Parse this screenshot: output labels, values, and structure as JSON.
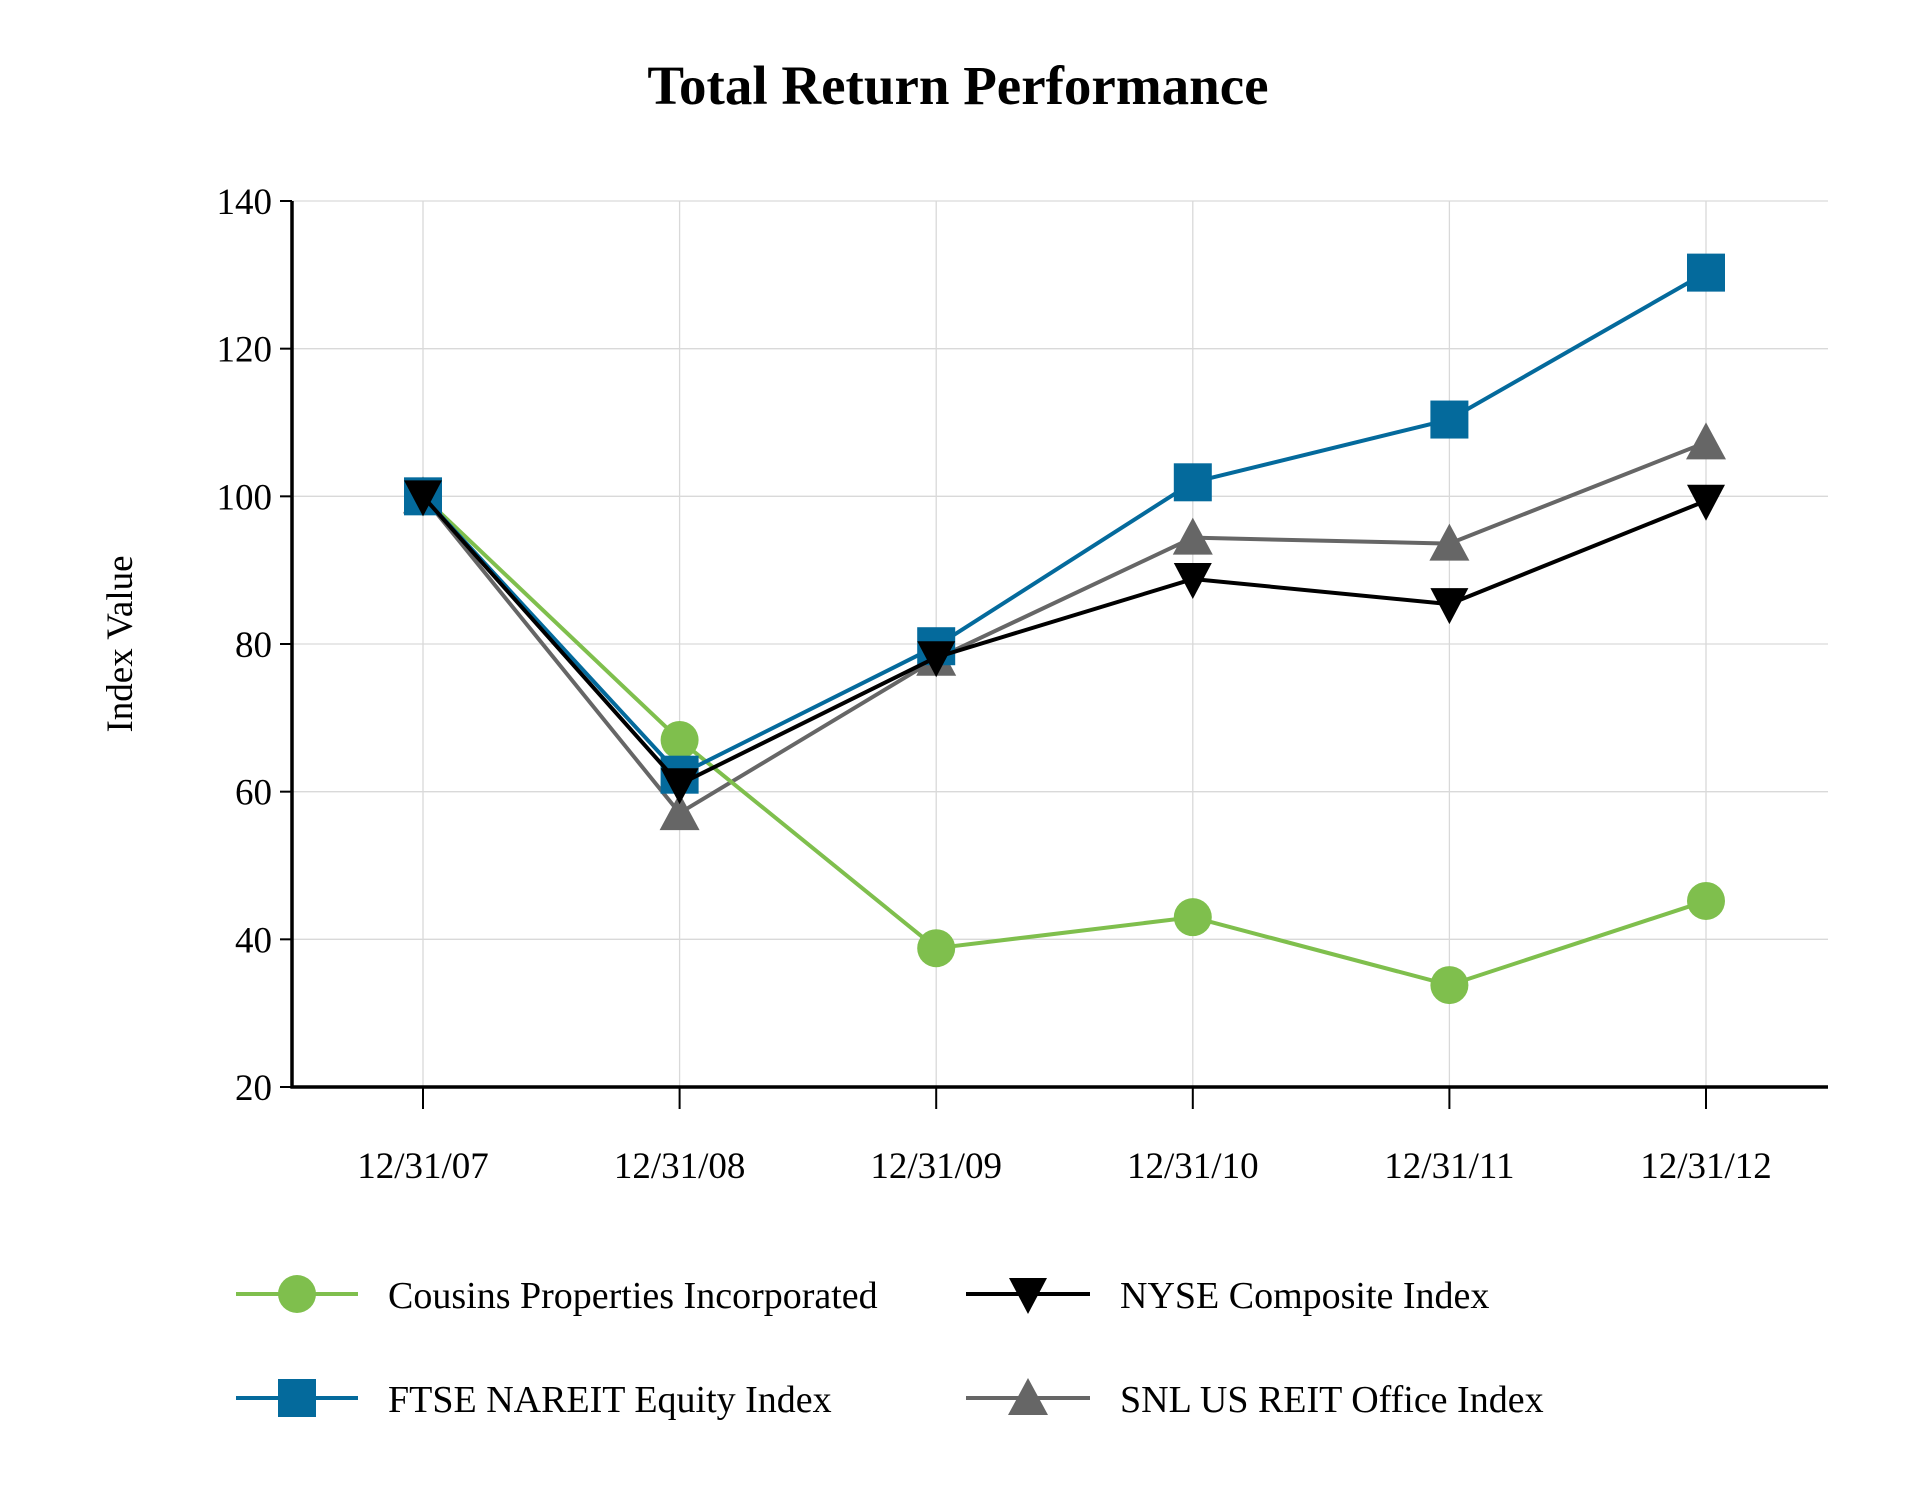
{
  "chart_data": {
    "type": "line",
    "title": "Total Return Performance",
    "xlabel": "",
    "ylabel": "Index Value",
    "categories": [
      "12/31/07",
      "12/31/08",
      "12/31/09",
      "12/31/10",
      "12/31/11",
      "12/31/12"
    ],
    "ylim": [
      20,
      140
    ],
    "yticks": [
      "20",
      "40",
      "60",
      "80",
      "100",
      "120",
      "140"
    ],
    "grid": true,
    "legend_position": "bottom",
    "series": [
      {
        "name": "Cousins Properties Incorporated",
        "color": "#7fbf4d",
        "marker": "circle",
        "values": [
          100,
          67.0,
          38.8,
          43.0,
          33.8,
          45.2
        ]
      },
      {
        "name": "NYSE Composite Index",
        "color": "#000000",
        "marker": "triangle-down",
        "values": [
          100,
          61.0,
          78.2,
          88.8,
          85.4,
          99.4
        ]
      },
      {
        "name": "FTSE NAREIT Equity Index",
        "color": "#046a9c",
        "marker": "square",
        "values": [
          100,
          62.3,
          79.7,
          101.9,
          110.4,
          130.3
        ]
      },
      {
        "name": "SNL US REIT Office Index",
        "color": "#666666",
        "marker": "triangle-up",
        "values": [
          100,
          57.1,
          78.0,
          94.4,
          93.6,
          107.3
        ]
      }
    ]
  }
}
